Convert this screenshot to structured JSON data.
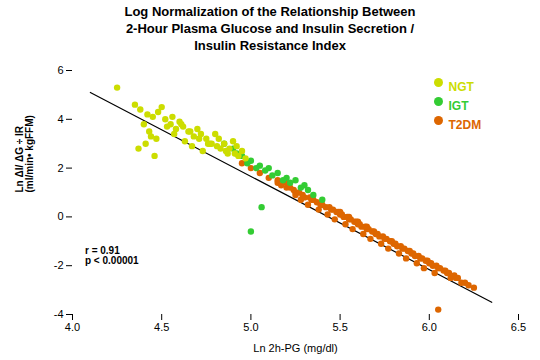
{
  "chart_data": {
    "type": "scatter",
    "title": "Log Normalization of the Relationship Between\n2-Hour Plasma Glucose and Insulin Secretion /\nInsulin Resistance Index",
    "xlabel": "Ln 2h-PG (mg/dl)",
    "ylabel": "Ln ΔI/ ΔG ÷ IR\n(ml/min• kgFFM)",
    "xlim": [
      4.0,
      6.5
    ],
    "ylim": [
      -4,
      6
    ],
    "xticks": [
      {
        "value": 4.0,
        "label": "4.0"
      },
      4.5,
      {
        "value": 5.0,
        "label": "5.0"
      },
      5.5,
      {
        "value": 6.0,
        "label": "6.0"
      },
      6.5
    ],
    "yticks": [
      -4,
      -2,
      0,
      2,
      4,
      6
    ],
    "grid": false,
    "legend": "top-right",
    "series": [
      {
        "name": "NGT",
        "color": "#CCDD00",
        "values": [
          [
            4.25,
            5.3
          ],
          [
            4.35,
            4.6
          ],
          [
            4.38,
            4.4
          ],
          [
            4.42,
            4.2
          ],
          [
            4.45,
            4.1
          ],
          [
            4.48,
            4.3
          ],
          [
            4.5,
            4.5
          ],
          [
            4.52,
            4.0
          ],
          [
            4.55,
            3.8
          ],
          [
            4.58,
            3.6
          ],
          [
            4.6,
            3.9
          ],
          [
            4.62,
            3.7
          ],
          [
            4.65,
            3.5
          ],
          [
            4.68,
            3.3
          ],
          [
            4.7,
            3.6
          ],
          [
            4.72,
            3.4
          ],
          [
            4.75,
            3.2
          ],
          [
            4.78,
            3.0
          ],
          [
            4.8,
            3.4
          ],
          [
            4.82,
            3.2
          ],
          [
            4.85,
            3.0
          ],
          [
            4.88,
            2.8
          ],
          [
            4.9,
            3.1
          ],
          [
            4.92,
            2.9
          ],
          [
            4.95,
            2.7
          ],
          [
            4.4,
            3.8
          ],
          [
            4.43,
            3.5
          ],
          [
            4.47,
            3.2
          ],
          [
            4.53,
            3.7
          ],
          [
            4.57,
            3.4
          ],
          [
            4.63,
            3.1
          ],
          [
            4.67,
            2.9
          ],
          [
            4.73,
            2.7
          ],
          [
            4.77,
            3.0
          ],
          [
            4.83,
            2.8
          ],
          [
            4.87,
            2.6
          ],
          [
            4.93,
            2.5
          ],
          [
            4.97,
            2.4
          ],
          [
            4.46,
            2.5
          ],
          [
            4.56,
            4.1
          ],
          [
            4.61,
            3.8
          ],
          [
            4.66,
            3.5
          ],
          [
            4.71,
            3.2
          ],
          [
            4.76,
            3.0
          ],
          [
            4.81,
            2.9
          ],
          [
            4.86,
            2.7
          ],
          [
            4.91,
            2.6
          ],
          [
            4.37,
            2.8
          ],
          [
            4.41,
            3.0
          ],
          [
            4.44,
            3.3
          ]
        ]
      },
      {
        "name": "IGT",
        "color": "#33CC33",
        "values": [
          [
            4.85,
            3.0
          ],
          [
            4.9,
            2.8
          ],
          [
            4.95,
            2.5
          ],
          [
            5.0,
            2.3
          ],
          [
            5.05,
            2.1
          ],
          [
            5.1,
            2.0
          ],
          [
            5.15,
            1.8
          ],
          [
            5.2,
            1.6
          ],
          [
            5.25,
            1.5
          ],
          [
            5.3,
            1.3
          ],
          [
            5.0,
            -0.6
          ],
          [
            4.92,
            2.6
          ],
          [
            4.98,
            2.2
          ],
          [
            5.03,
            2.0
          ],
          [
            5.08,
            1.9
          ],
          [
            5.12,
            1.7
          ],
          [
            5.18,
            1.5
          ],
          [
            5.22,
            1.4
          ],
          [
            5.28,
            1.2
          ],
          [
            5.32,
            1.1
          ],
          [
            5.06,
            0.4
          ],
          [
            5.35,
            0.9
          ],
          [
            5.4,
            0.7
          ]
        ]
      },
      {
        "name": "T2DM",
        "color": "#DD6600",
        "values": [
          [
            4.95,
            2.2
          ],
          [
            5.0,
            2.0
          ],
          [
            5.05,
            1.8
          ],
          [
            5.1,
            1.6
          ],
          [
            5.15,
            1.4
          ],
          [
            5.2,
            1.2
          ],
          [
            5.25,
            1.0
          ],
          [
            5.3,
            0.8
          ],
          [
            5.35,
            0.7
          ],
          [
            5.4,
            0.5
          ],
          [
            5.45,
            0.3
          ],
          [
            5.5,
            0.1
          ],
          [
            5.55,
            -0.1
          ],
          [
            5.6,
            -0.3
          ],
          [
            5.65,
            -0.5
          ],
          [
            5.7,
            -0.7
          ],
          [
            5.75,
            -0.9
          ],
          [
            5.8,
            -1.1
          ],
          [
            5.85,
            -1.3
          ],
          [
            5.9,
            -1.5
          ],
          [
            5.95,
            -1.7
          ],
          [
            6.0,
            -1.9
          ],
          [
            6.05,
            -2.1
          ],
          [
            6.1,
            -2.3
          ],
          [
            6.15,
            -2.5
          ],
          [
            5.42,
            0.4
          ],
          [
            5.48,
            0.2
          ],
          [
            5.52,
            0.0
          ],
          [
            5.58,
            -0.2
          ],
          [
            5.62,
            -0.4
          ],
          [
            5.68,
            -0.6
          ],
          [
            5.72,
            -0.8
          ],
          [
            5.78,
            -1.0
          ],
          [
            5.82,
            -1.2
          ],
          [
            5.88,
            -1.4
          ],
          [
            5.92,
            -1.6
          ],
          [
            5.98,
            -1.8
          ],
          [
            6.02,
            -2.0
          ],
          [
            6.08,
            -2.2
          ],
          [
            5.25,
            0.9
          ],
          [
            5.28,
            0.7
          ],
          [
            5.32,
            0.5
          ],
          [
            5.38,
            0.3
          ],
          [
            5.43,
            0.1
          ],
          [
            5.47,
            -0.1
          ],
          [
            5.53,
            -0.3
          ],
          [
            5.57,
            -0.5
          ],
          [
            5.63,
            -0.7
          ],
          [
            5.67,
            -0.9
          ],
          [
            5.73,
            -1.1
          ],
          [
            5.77,
            -1.3
          ],
          [
            5.83,
            -1.5
          ],
          [
            5.87,
            -1.7
          ],
          [
            5.93,
            -1.9
          ],
          [
            5.97,
            -2.1
          ],
          [
            6.03,
            -2.3
          ],
          [
            6.12,
            -2.5
          ],
          [
            6.18,
            -2.7
          ],
          [
            5.2,
            1.4
          ],
          [
            5.22,
            1.2
          ],
          [
            5.27,
            1.0
          ],
          [
            5.33,
            0.8
          ],
          [
            5.37,
            0.6
          ],
          [
            5.44,
            0.4
          ],
          [
            5.49,
            0.2
          ],
          [
            5.54,
            0.0
          ],
          [
            5.59,
            -0.2
          ],
          [
            5.64,
            -0.4
          ],
          [
            5.69,
            -0.6
          ],
          [
            5.74,
            -0.8
          ],
          [
            5.79,
            -1.0
          ],
          [
            5.84,
            -1.2
          ],
          [
            5.89,
            -1.4
          ],
          [
            5.94,
            -1.6
          ],
          [
            5.99,
            -1.8
          ],
          [
            6.04,
            -2.0
          ],
          [
            6.09,
            -2.2
          ],
          [
            6.14,
            -2.4
          ],
          [
            6.05,
            -3.8
          ],
          [
            5.15,
            1.5
          ],
          [
            5.17,
            1.3
          ],
          [
            5.24,
            1.1
          ],
          [
            5.29,
            0.9
          ],
          [
            5.34,
            0.7
          ],
          [
            5.39,
            0.5
          ],
          [
            5.46,
            0.3
          ],
          [
            5.51,
            0.1
          ],
          [
            5.56,
            -0.1
          ],
          [
            5.61,
            -0.3
          ],
          [
            5.66,
            -0.5
          ],
          [
            5.71,
            -0.7
          ],
          [
            5.76,
            -0.9
          ],
          [
            5.81,
            -1.1
          ],
          [
            5.86,
            -1.3
          ],
          [
            5.91,
            -1.5
          ],
          [
            5.96,
            -1.7
          ],
          [
            6.01,
            -1.9
          ],
          [
            6.06,
            -2.1
          ],
          [
            6.11,
            -2.3
          ],
          [
            6.16,
            -2.5
          ],
          [
            6.2,
            -2.7
          ],
          [
            6.22,
            -2.8
          ],
          [
            6.25,
            -2.9
          ],
          [
            5.5,
            0.2
          ],
          [
            5.55,
            0.0
          ],
          [
            5.6,
            -0.2
          ],
          [
            5.65,
            -0.4
          ]
        ]
      }
    ],
    "regression_line": {
      "x": [
        4.1,
        6.35
      ],
      "y": [
        5.1,
        -3.5
      ]
    },
    "annotations": [
      {
        "text": "r = 0.91\np < 0.00001",
        "x": 4.07,
        "y": -1.6
      }
    ]
  }
}
